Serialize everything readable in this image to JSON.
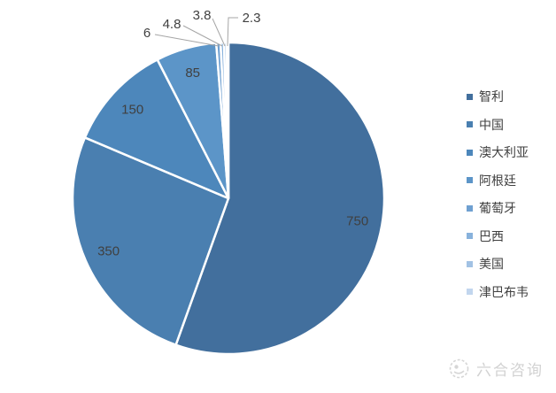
{
  "chart_data": {
    "type": "pie",
    "categories": [
      "智利",
      "中国",
      "澳大利亚",
      "阿根廷",
      "葡萄牙",
      "巴西",
      "美国",
      "津巴布韦"
    ],
    "values": [
      750,
      350,
      150,
      85,
      6,
      4.8,
      3.8,
      2.3
    ],
    "labels": [
      "750",
      "350",
      "150",
      "85",
      "6",
      "4.8",
      "3.8",
      "2.3"
    ],
    "colors": [
      "#426F9D",
      "#4A7FB0",
      "#4D87BB",
      "#5C95C8",
      "#6FA0D1",
      "#88B2DC",
      "#A2C2E4",
      "#C2D6EE"
    ],
    "title": "",
    "legend_position": "right",
    "start_angle_deg": 0,
    "direction": "clockwise",
    "slice_border_color": "#FFFFFF",
    "label_color": "#404040",
    "leader_line_color": "#A6A6A6"
  },
  "watermark": {
    "text": "六合咨询",
    "icon": "liuhe-logo-icon"
  }
}
